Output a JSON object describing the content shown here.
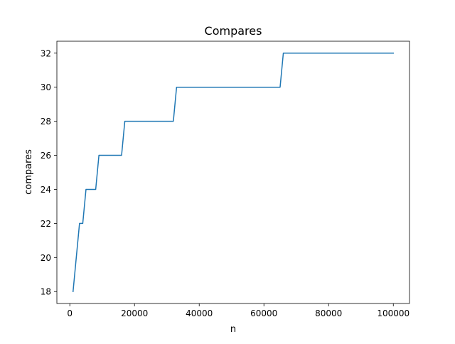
{
  "chart_data": {
    "type": "line",
    "title": "Compares",
    "xlabel": "n",
    "ylabel": "compares",
    "xlim": [
      -4000,
      105000
    ],
    "ylim": [
      17.3,
      32.7
    ],
    "xticks": [
      0,
      20000,
      40000,
      60000,
      80000,
      100000
    ],
    "yticks": [
      18,
      20,
      22,
      24,
      26,
      28,
      30,
      32
    ],
    "grid": false,
    "line_color": "#1f77b4",
    "series": [
      {
        "x": [
          1000,
          3000,
          4000,
          5000,
          8000,
          9000,
          16000,
          17000,
          32000,
          33000,
          65000,
          66000,
          100000
        ],
        "values": [
          18,
          22,
          22,
          24,
          24,
          26,
          26,
          28,
          28,
          30,
          30,
          32,
          32
        ]
      }
    ]
  }
}
